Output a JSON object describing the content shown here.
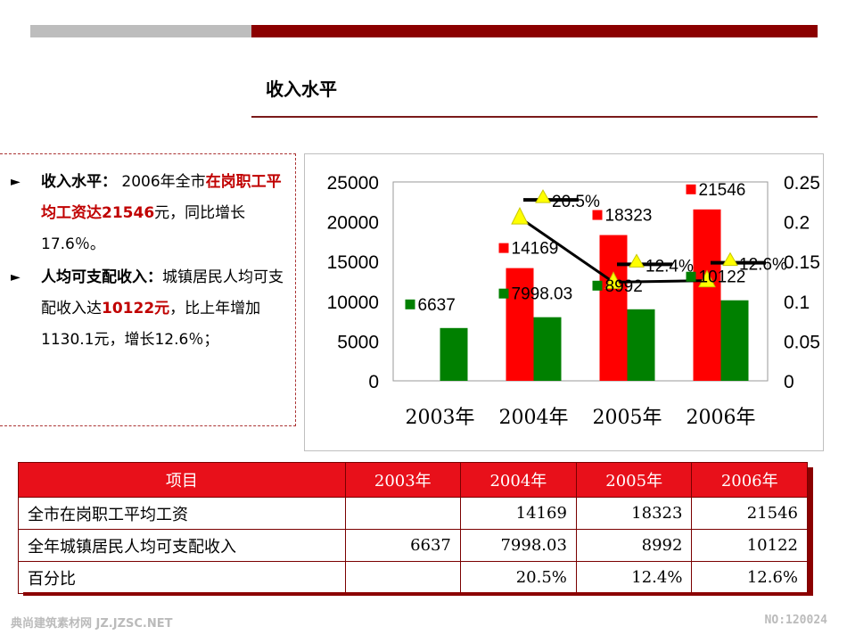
{
  "header": {
    "title": "收入水平"
  },
  "text": {
    "bullet1": {
      "label": "收入水平：",
      "pre": " 2006年全市",
      "highlight": "在岗职工平均工资达21546",
      "post": "元，同比增长17.6％。"
    },
    "bullet2": {
      "label": "人均可支配收入：",
      "pre": "城镇居民人均可支配收入达",
      "highlight": "10122元",
      "post": "，比上年增加1130.1元，增长12.6％；"
    }
  },
  "chart_data": {
    "type": "bar",
    "categories": [
      "2003年",
      "2004年",
      "2005年",
      "2006年"
    ],
    "series": [
      {
        "values": [
          null,
          14169,
          18323,
          21546
        ],
        "color": "#ff0000",
        "labels": [
          "",
          "14169",
          "18323",
          "21546"
        ]
      },
      {
        "values": [
          6637,
          7998.03,
          8992,
          10122
        ],
        "color": "#008000",
        "labels": [
          "6637",
          "7998.03",
          "8992",
          "10122"
        ]
      },
      {
        "values": [
          null,
          0.205,
          0.124,
          0.126
        ],
        "color": "#000000",
        "type": "line",
        "marker": "triangle-yellow",
        "labels": [
          "",
          "20.5%",
          "12.4%",
          "12.6%"
        ]
      }
    ],
    "ylim": [
      0,
      25000
    ],
    "yticks": [
      "25000",
      "20000",
      "15000",
      "10000",
      "5000",
      "0"
    ],
    "y2lim": [
      0,
      0.25
    ],
    "y2ticks": [
      "0.25",
      "0.2",
      "0.15",
      "0.1",
      "0.05",
      "0"
    ],
    "grid": false,
    "legend": "none"
  },
  "table": {
    "headers": [
      "项目",
      "2003年",
      "2004年",
      "2005年",
      "2006年"
    ],
    "rows": [
      [
        "全市在岗职工平均工资",
        "",
        "14169",
        "18323",
        "21546"
      ],
      [
        "全年城镇居民人均可支配收入",
        "6637",
        "7998.03",
        "8992",
        "10122"
      ],
      [
        "百分比",
        "",
        "20.5%",
        "12.4%",
        "12.6%"
      ]
    ]
  },
  "watermark": {
    "left": "典尚建筑素材网 JZ.JZSC.NET",
    "right": "NO:120024"
  }
}
